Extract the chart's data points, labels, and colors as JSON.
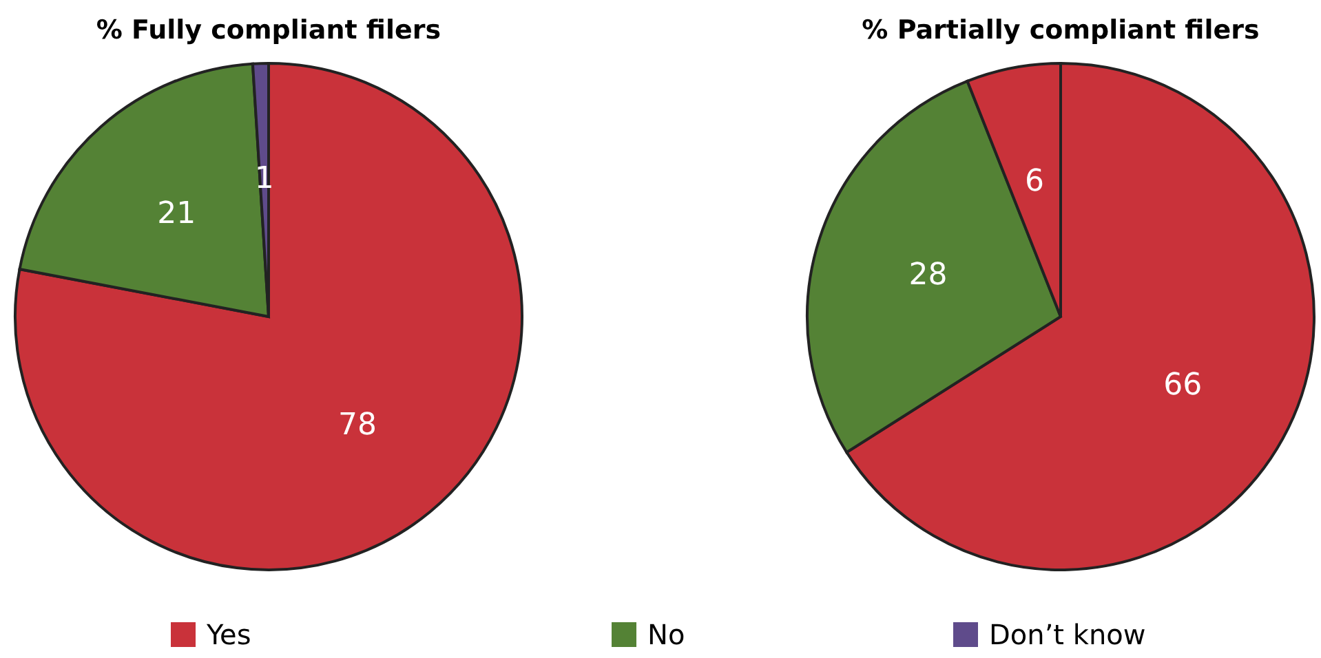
{
  "chart_data": [
    {
      "type": "pie",
      "title": "% Fully compliant filers",
      "categories": [
        "Yes",
        "No",
        "Don’t know"
      ],
      "values": [
        78,
        21,
        1
      ],
      "colors": [
        "#c9323a",
        "#548235",
        "#5f4b8b"
      ],
      "data_labels": true,
      "legend": "bottom"
    },
    {
      "type": "pie",
      "title": "% Partially compliant filers",
      "categories": [
        null,
        null,
        null
      ],
      "values": [
        66,
        28,
        6
      ],
      "colors": [
        "#c9323a",
        "#548235",
        "#c9323a"
      ],
      "data_labels": true
    }
  ]
}
